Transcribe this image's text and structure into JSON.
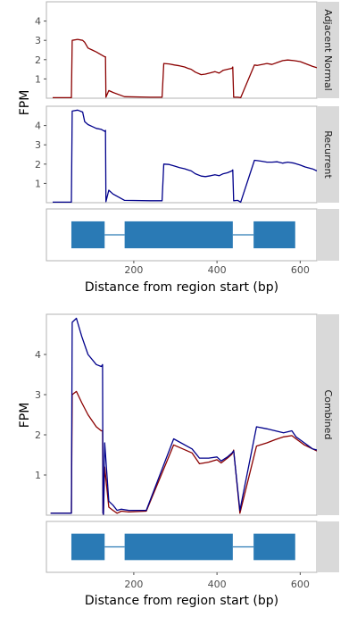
{
  "chart_data": [
    {
      "type": "line",
      "ylabel": "FPM",
      "ylim": [
        0,
        5
      ],
      "y_ticks": [
        "1",
        "2",
        "3",
        "4"
      ],
      "xlim": [
        -10,
        640
      ],
      "panels": [
        {
          "strip": "Adjacent Normal",
          "series": [
            {
              "color": "#8b0000",
              "x": [
                5,
                50,
                52,
                65,
                77,
                82,
                90,
                100,
                110,
                122,
                130,
                132,
                133,
                140,
                150,
                178,
                240,
                268,
                272,
                285,
                298,
                310,
                322,
                330,
                338,
                348,
                362,
                372,
                385,
                395,
                405,
                415,
                425,
                436,
                438,
                440,
                450,
                457,
                490,
                497,
                508,
                520,
                532,
                545,
                558,
                570,
                585,
                600,
                612,
                630,
                645
              ],
              "y": [
                0.03,
                0.03,
                3.0,
                3.05,
                3.0,
                2.9,
                2.6,
                2.5,
                2.4,
                2.25,
                2.15,
                2.15,
                0.05,
                0.4,
                0.3,
                0.08,
                0.05,
                0.05,
                1.8,
                1.78,
                1.72,
                1.68,
                1.62,
                1.55,
                1.5,
                1.35,
                1.22,
                1.25,
                1.32,
                1.38,
                1.3,
                1.45,
                1.5,
                1.55,
                1.62,
                0.05,
                0.05,
                0.03,
                1.72,
                1.7,
                1.75,
                1.8,
                1.75,
                1.85,
                1.95,
                1.98,
                1.95,
                1.9,
                1.8,
                1.65,
                1.55
              ]
            }
          ]
        },
        {
          "strip": "Recurrent",
          "series": [
            {
              "color": "#00008b",
              "x": [
                5,
                50,
                52,
                65,
                77,
                82,
                90,
                100,
                110,
                122,
                130,
                132,
                133,
                140,
                150,
                178,
                240,
                268,
                272,
                285,
                298,
                310,
                322,
                330,
                338,
                348,
                362,
                372,
                385,
                395,
                405,
                415,
                425,
                436,
                438,
                440,
                450,
                457,
                490,
                497,
                508,
                520,
                532,
                545,
                558,
                570,
                585,
                600,
                612,
                630,
                645
              ],
              "y": [
                0.03,
                0.03,
                4.75,
                4.8,
                4.7,
                4.2,
                4.05,
                3.95,
                3.85,
                3.8,
                3.7,
                3.75,
                0.05,
                0.65,
                0.45,
                0.12,
                0.1,
                0.1,
                2.0,
                1.98,
                1.9,
                1.82,
                1.76,
                1.7,
                1.65,
                1.5,
                1.38,
                1.35,
                1.4,
                1.45,
                1.4,
                1.5,
                1.55,
                1.65,
                1.7,
                0.1,
                0.12,
                0.03,
                2.2,
                2.18,
                2.15,
                2.1,
                2.1,
                2.12,
                2.05,
                2.1,
                2.05,
                1.95,
                1.85,
                1.75,
                1.6
              ]
            }
          ]
        }
      ],
      "annotation": {
        "exons": [
          [
            50,
            130
          ],
          [
            178,
            438
          ],
          [
            488,
            588
          ]
        ],
        "intron_links": [
          [
            130,
            178
          ],
          [
            438,
            488
          ]
        ],
        "color": "#2a7ab5"
      },
      "x_ticks": [
        200,
        400,
        600
      ],
      "xlabel": "Distance from region start (bp)"
    },
    {
      "type": "line",
      "ylabel": "FPM",
      "ylim": [
        0,
        5
      ],
      "y_ticks": [
        "1",
        "2",
        "3",
        "4"
      ],
      "xlim": [
        -10,
        640
      ],
      "panels": [
        {
          "strip": "Combined",
          "series": [
            {
              "color": "#8b0000",
              "x": [
                0,
                50,
                52,
                62,
                75,
                90,
                110,
                122,
                125,
                126,
                127,
                130,
                140,
                150,
                160,
                170,
                188,
                230,
                296,
                340,
                358,
                380,
                400,
                410,
                425,
                436,
                440,
                455,
                495,
                520,
                540,
                560,
                580,
                590,
                610,
                630,
                650
              ],
              "y": [
                0.05,
                0.05,
                3.0,
                3.08,
                2.8,
                2.5,
                2.2,
                2.1,
                2.1,
                0.05,
                0.02,
                1.2,
                0.2,
                0.12,
                0.05,
                0.1,
                0.08,
                0.1,
                1.75,
                1.55,
                1.28,
                1.32,
                1.38,
                1.3,
                1.42,
                1.52,
                1.62,
                0.05,
                1.72,
                1.8,
                1.88,
                1.95,
                1.98,
                1.9,
                1.75,
                1.65,
                1.55
              ]
            },
            {
              "color": "#00008b",
              "x": [
                0,
                50,
                52,
                62,
                75,
                90,
                110,
                122,
                125,
                126,
                127,
                130,
                140,
                150,
                160,
                170,
                188,
                230,
                296,
                340,
                358,
                380,
                400,
                410,
                425,
                436,
                440,
                455,
                495,
                520,
                540,
                560,
                580,
                590,
                610,
                630,
                650
              ],
              "y": [
                0.05,
                0.05,
                4.8,
                4.9,
                4.45,
                4.0,
                3.75,
                3.7,
                3.75,
                0.05,
                0.02,
                1.8,
                0.35,
                0.25,
                0.12,
                0.15,
                0.12,
                0.12,
                1.9,
                1.65,
                1.42,
                1.42,
                1.45,
                1.35,
                1.45,
                1.55,
                1.6,
                0.12,
                2.2,
                2.15,
                2.1,
                2.05,
                2.1,
                1.95,
                1.8,
                1.65,
                1.6
              ]
            }
          ]
        }
      ],
      "annotation": {
        "exons": [
          [
            50,
            130
          ],
          [
            178,
            438
          ],
          [
            488,
            588
          ]
        ],
        "intron_links": [
          [
            130,
            178
          ],
          [
            438,
            488
          ]
        ],
        "color": "#2a7ab5"
      },
      "x_ticks": [
        200,
        400,
        600
      ],
      "xlabel": "Distance from region start (bp)"
    }
  ]
}
